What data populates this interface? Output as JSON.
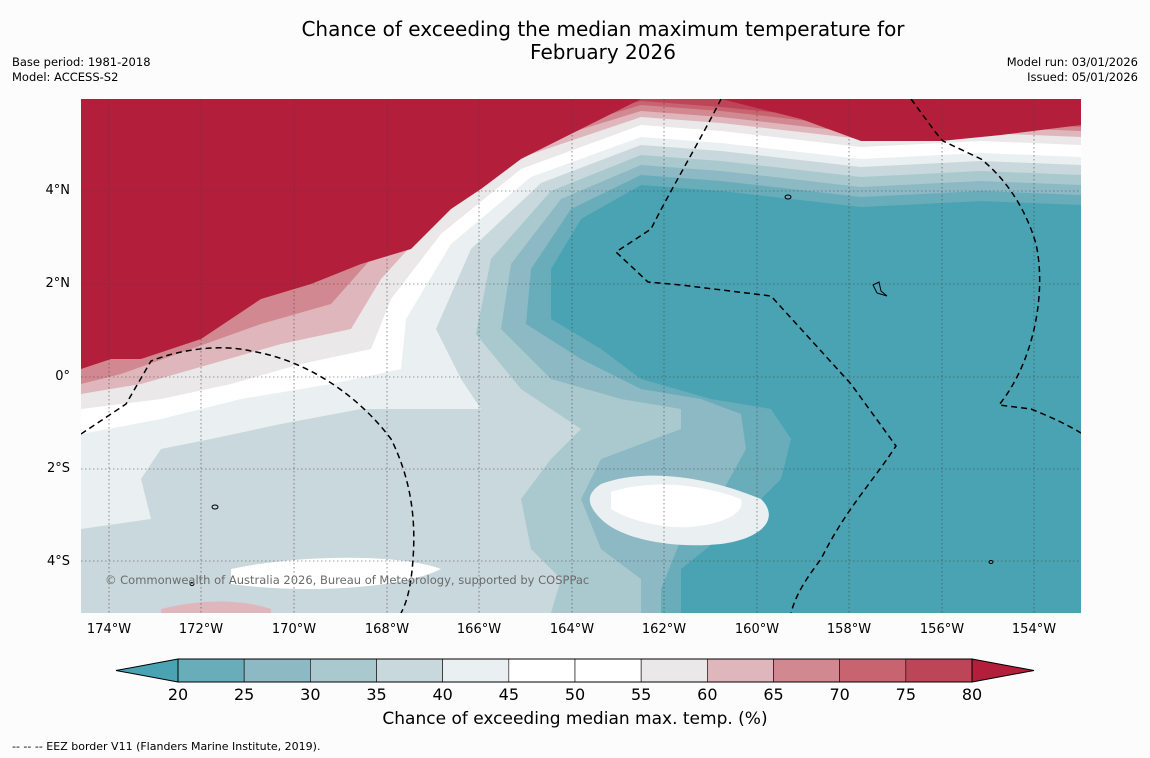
{
  "title": {
    "line1": "Chance of exceeding the median maximum temperature for",
    "line2": "February 2026"
  },
  "meta_left": {
    "base_period": "Base period: 1981-2018",
    "model": "Model: ACCESS-S2"
  },
  "meta_right": {
    "model_run": "Model run: 03/01/2026",
    "issued": "Issued: 05/01/2026"
  },
  "copyright": "© Commonwealth of Australia 2026, Bureau of Meteorology, supported by COSPPac",
  "lat_labels": [
    "4°N",
    "2°N",
    "0°",
    "2°S",
    "4°S"
  ],
  "lon_labels": [
    "174°W",
    "172°W",
    "170°W",
    "168°W",
    "166°W",
    "164°W",
    "162°W",
    "160°W",
    "158°W",
    "156°W",
    "154°W"
  ],
  "colorbar": {
    "ticks": [
      "20",
      "25",
      "30",
      "35",
      "40",
      "45",
      "50",
      "55",
      "60",
      "65",
      "70",
      "75",
      "80"
    ],
    "colors": [
      "#4aa3b3",
      "#6aadba",
      "#8cb9c4",
      "#aac9ce",
      "#c8d8dc",
      "#eaeff1",
      "#ffffff",
      "#ffffff",
      "#ebe8ea",
      "#e0b6bd",
      "#d18890",
      "#c76470",
      "#bc4557",
      "#b31e3a"
    ],
    "title": "Chance of exceeding median max. temp. (%)"
  },
  "footnote": "--  --  -- EEZ border V11 (Flanders Marine Institute, 2019)."
}
